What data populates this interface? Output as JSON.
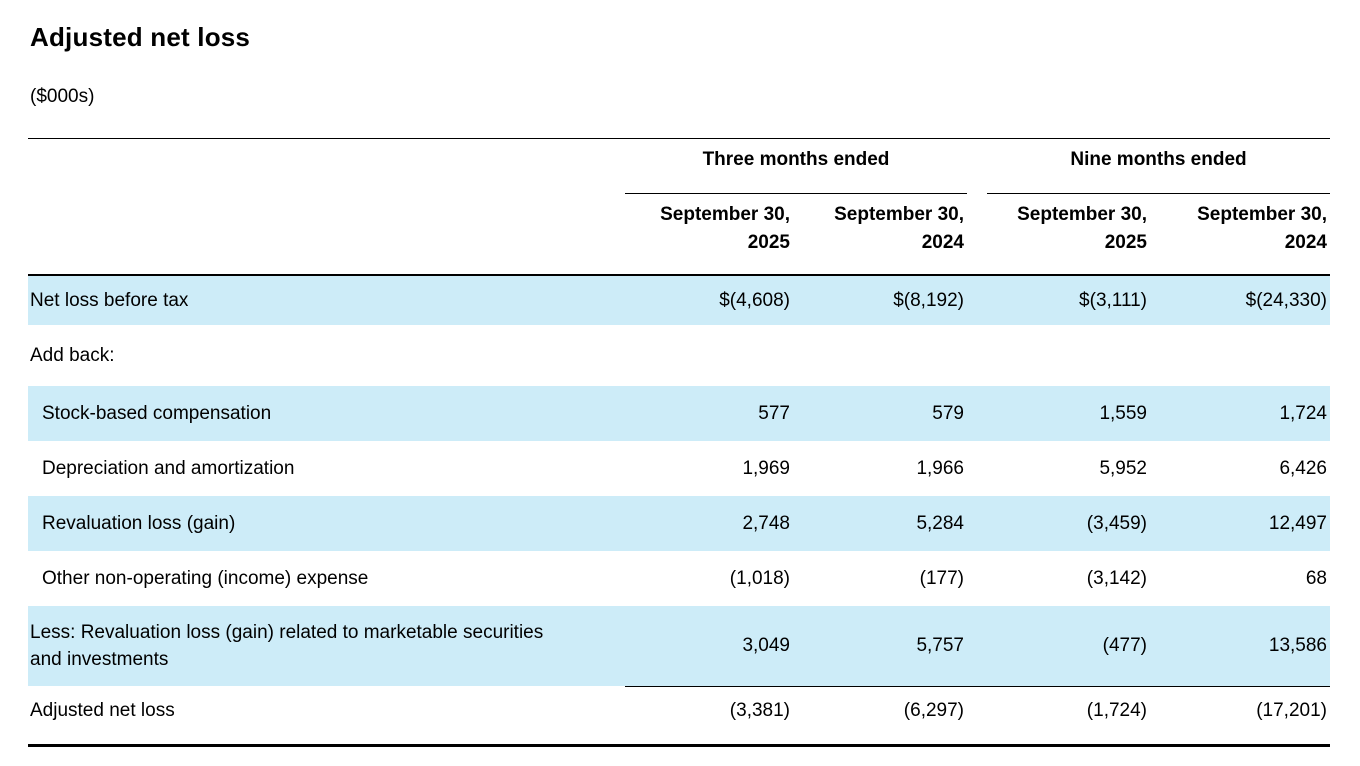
{
  "title": "Adjusted net loss",
  "subtitle": "($000s)",
  "colors": {
    "row_shading": "#cdecf8",
    "text": "#000000",
    "rules": "#000000"
  },
  "table": {
    "groups": [
      {
        "label": "Three months ended"
      },
      {
        "label": "Nine months ended"
      }
    ],
    "columns": [
      {
        "line1": "September 30,",
        "line2": "2025"
      },
      {
        "line1": "September 30,",
        "line2": "2024"
      },
      {
        "line1": "September 30,",
        "line2": "2025"
      },
      {
        "line1": "September 30,",
        "line2": "2024"
      }
    ],
    "rows": [
      {
        "label": "Net loss before tax",
        "values": [
          "$(4,608)",
          "$(8,192)",
          "$(3,111)",
          "$(24,330)"
        ]
      },
      {
        "label": "Add back:",
        "values": [
          "",
          "",
          "",
          ""
        ]
      },
      {
        "label": "Stock-based compensation",
        "values": [
          "577",
          "579",
          "1,559",
          "1,724"
        ]
      },
      {
        "label": "Depreciation and amortization",
        "values": [
          "1,969",
          "1,966",
          "5,952",
          "6,426"
        ]
      },
      {
        "label": "Revaluation loss (gain)",
        "values": [
          "2,748",
          "5,284",
          "(3,459)",
          "12,497"
        ]
      },
      {
        "label": "Other non-operating (income) expense",
        "values": [
          "(1,018)",
          "(177)",
          "(3,142)",
          "68"
        ]
      },
      {
        "label": "Less: Revaluation loss (gain) related to marketable securities and investments",
        "values": [
          "3,049",
          "5,757",
          "(477)",
          "13,586"
        ]
      },
      {
        "label": "Adjusted net loss",
        "values": [
          "(3,381)",
          "(6,297)",
          "(1,724)",
          "(17,201)"
        ]
      }
    ]
  }
}
